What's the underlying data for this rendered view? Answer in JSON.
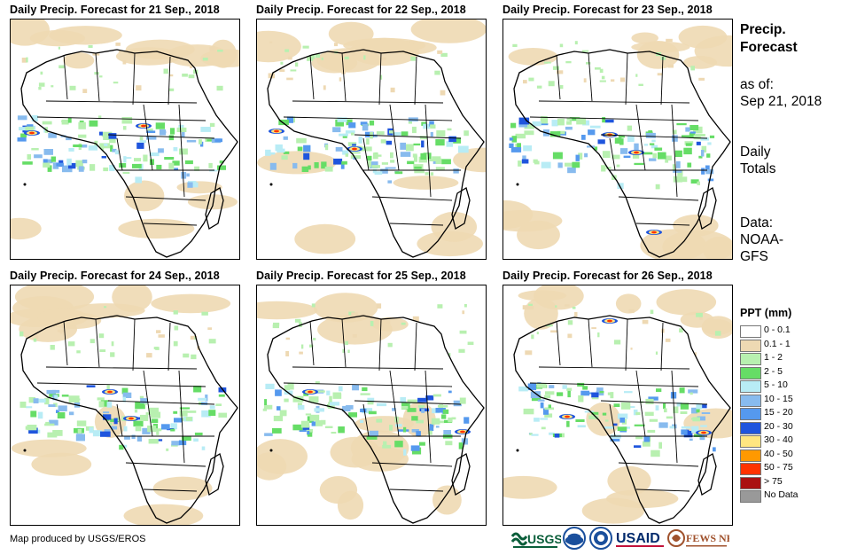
{
  "panels": [
    {
      "title": "Daily Precip. Forecast for 21  Sep., 2018"
    },
    {
      "title": "Daily Precip. Forecast for 22  Sep., 2018"
    },
    {
      "title": "Daily Precip. Forecast for 23  Sep., 2018"
    },
    {
      "title": "Daily Precip. Forecast for 24  Sep., 2018"
    },
    {
      "title": "Daily Precip. Forecast for 25  Sep., 2018"
    },
    {
      "title": "Daily Precip. Forecast for 26  Sep., 2018"
    }
  ],
  "sidebar": {
    "title_line1": "Precip.",
    "title_line2": "Forecast",
    "asof_label": "as of:",
    "asof_date": "Sep 21, 2018",
    "totals_line1": "Daily",
    "totals_line2": "Totals",
    "data_line1": "Data:",
    "data_line2": "NOAA-",
    "data_line3": "GFS"
  },
  "legend": {
    "title": "PPT (mm)",
    "items": [
      {
        "label": "0 - 0.1",
        "color": "#ffffff"
      },
      {
        "label": "0.1 - 1",
        "color": "#eed9b3"
      },
      {
        "label": "1 - 2",
        "color": "#b8f0b0"
      },
      {
        "label": "2 - 5",
        "color": "#66dd66"
      },
      {
        "label": "5 - 10",
        "color": "#b8ecf5"
      },
      {
        "label": "10 - 15",
        "color": "#88bbee"
      },
      {
        "label": "15 - 20",
        "color": "#5599ee"
      },
      {
        "label": "20 - 30",
        "color": "#1f55dd"
      },
      {
        "label": "30 - 40",
        "color": "#ffe680"
      },
      {
        "label": "40 - 50",
        "color": "#ff9900"
      },
      {
        "label": "50 - 75",
        "color": "#ff3300"
      },
      {
        "label": "> 75",
        "color": "#aa1111"
      },
      {
        "label": "No Data",
        "color": "#999999"
      }
    ]
  },
  "credit": "Map produced by USGS/EROS",
  "logos": {
    "usgs": "USGS",
    "usaid": "USAID",
    "fewsnet": "FEWS NET"
  }
}
